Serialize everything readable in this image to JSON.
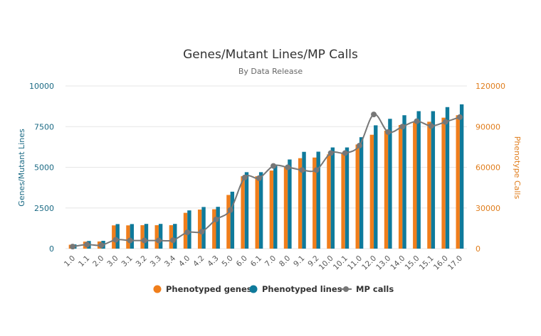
{
  "chart_data": {
    "type": "bar",
    "title": "Genes/Mutant Lines/MP Calls",
    "subtitle": "By Data Release",
    "xlabel": "",
    "ylabel": "Genes/Mutant Lines",
    "y2label": "Phenotype Calls",
    "ylim": [
      0,
      10000
    ],
    "y2lim": [
      0,
      120000
    ],
    "yticks": [
      "0",
      "2500",
      "5000",
      "7500",
      "10000"
    ],
    "y2ticks": [
      "0",
      "30000",
      "60000",
      "90000",
      "120000"
    ],
    "categories": [
      "1.0",
      "1.1",
      "2.0",
      "3.0",
      "3.1",
      "3.2",
      "3.3",
      "3.4",
      "4.0",
      "4.2",
      "4.3",
      "5.0",
      "6.0",
      "6.1",
      "7.0",
      "8.0",
      "9.1",
      "9.2",
      "10.0",
      "10.1",
      "11.0",
      "12.0",
      "13.0",
      "14.0",
      "15.0",
      "15.1",
      "16.0",
      "17.0"
    ],
    "series": [
      {
        "name": "Phenotyped genes",
        "type": "bar",
        "axis": "left",
        "color": "#f07e1b",
        "values": [
          240,
          430,
          440,
          1430,
          1430,
          1440,
          1440,
          1440,
          2200,
          2400,
          2420,
          3300,
          4450,
          4450,
          4800,
          5000,
          5560,
          5600,
          5800,
          5850,
          6400,
          7000,
          7250,
          7600,
          7800,
          7800,
          8050,
          8200
        ]
      },
      {
        "name": "Phenotyped lines",
        "type": "bar",
        "axis": "left",
        "color": "#0f7a9b",
        "values": [
          260,
          470,
          480,
          1510,
          1510,
          1520,
          1520,
          1520,
          2350,
          2560,
          2570,
          3500,
          4700,
          4700,
          5170,
          5480,
          5950,
          5960,
          6220,
          6220,
          6850,
          7580,
          7980,
          8200,
          8450,
          8450,
          8700,
          8870
        ]
      },
      {
        "name": "MP calls",
        "type": "line",
        "axis": "right",
        "color": "#777777",
        "values": [
          1500,
          3000,
          2500,
          6500,
          6000,
          6000,
          6000,
          6200,
          12000,
          12500,
          21500,
          28500,
          52500,
          52000,
          61000,
          60000,
          58000,
          58000,
          70500,
          70500,
          76000,
          99000,
          86000,
          90000,
          94000,
          90500,
          93500,
          97000
        ]
      }
    ],
    "legend_position": "bottom-center"
  }
}
